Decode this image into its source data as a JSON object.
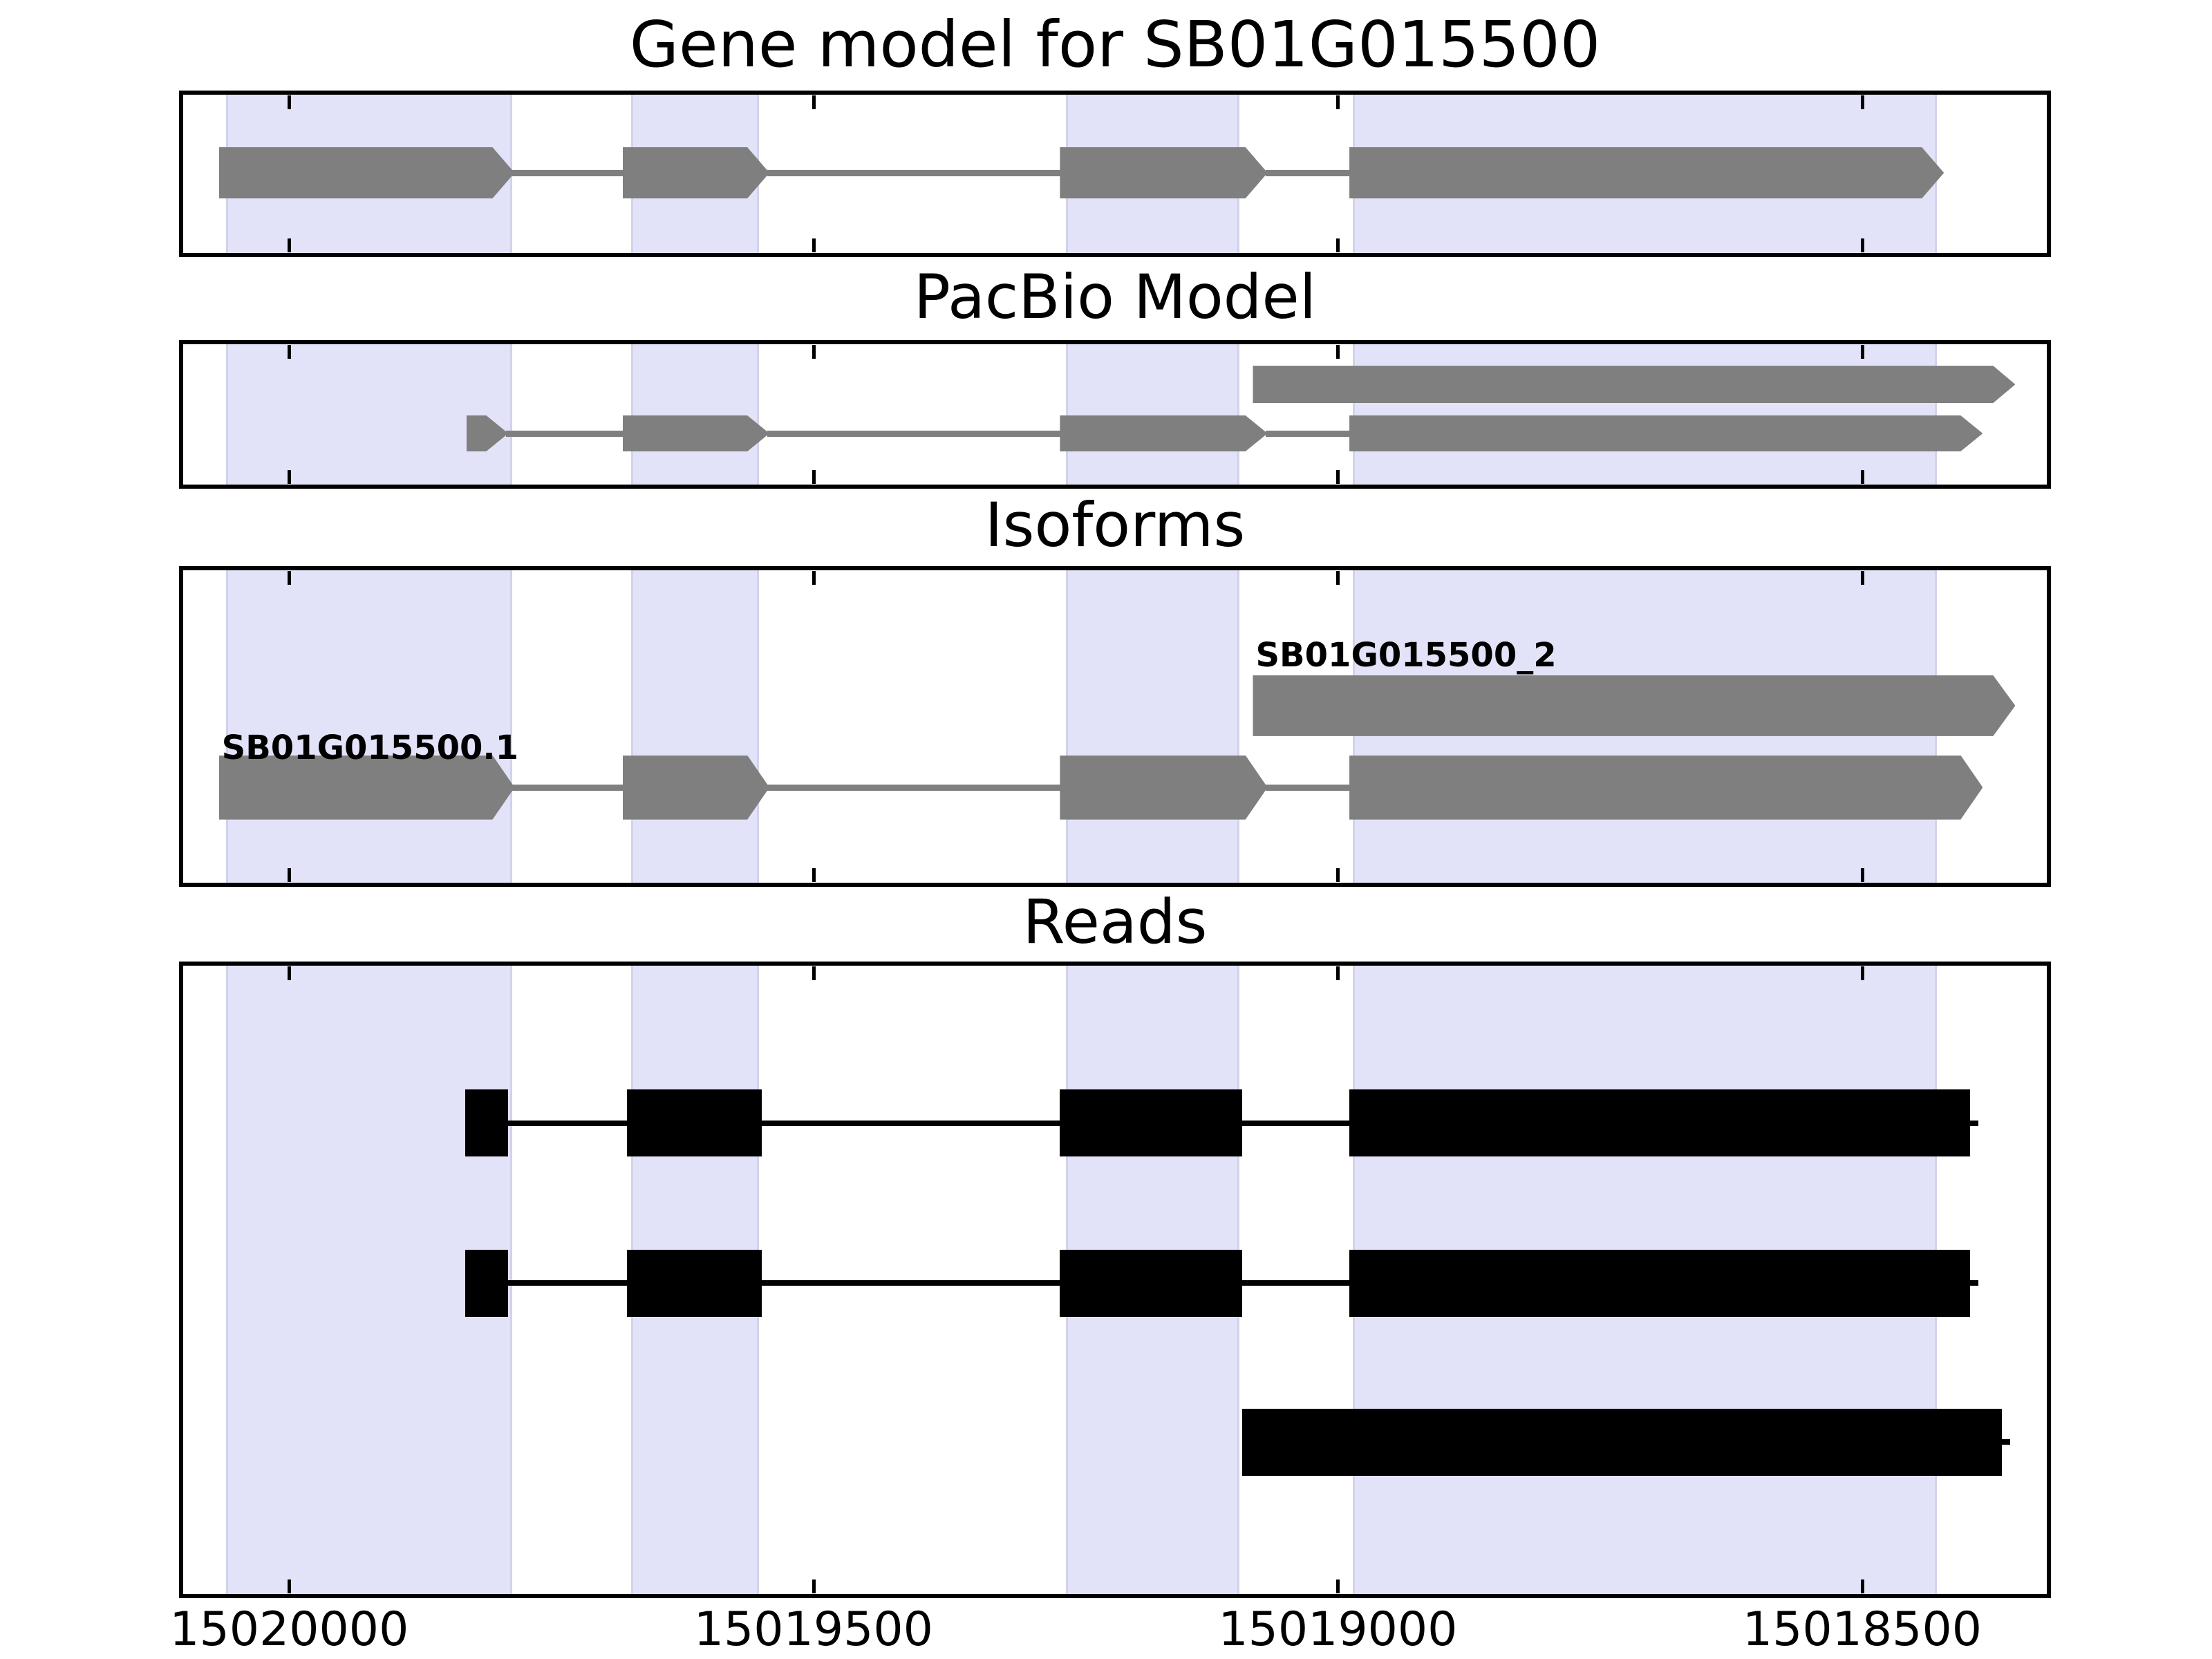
{
  "chart_data": {
    "type": "genomic-features",
    "title": "Gene model for SB01G015500",
    "gene_id": "SB01G015500",
    "x_axis": {
      "label": "",
      "unit": "bp",
      "inverted": true,
      "domain": [
        15020105,
        15018320
      ],
      "ticks": [
        15020000,
        15019500,
        15019000,
        15018500
      ],
      "tick_labels": [
        "15020000",
        "15019500",
        "15019000",
        "15018500"
      ]
    },
    "colors": {
      "model_exon": "#7f7f7f",
      "read": "#000000",
      "highlight_band": "#e2e2f8",
      "highlight_band_edge": "#d2d2ea",
      "frame": "#000000",
      "background": "#ffffff"
    },
    "highlight_regions": [
      {
        "start": 15020060,
        "end": 15019787
      },
      {
        "start": 15019674,
        "end": 15019552
      },
      {
        "start": 15019259,
        "end": 15019094
      },
      {
        "start": 15018986,
        "end": 15018429
      }
    ],
    "tracks": [
      {
        "title": "Gene model for SB01G015500",
        "style": "model",
        "features": [
          {
            "label": "",
            "exons": [
              {
                "start": 15020067,
                "end": 15019785
              },
              {
                "start": 15019682,
                "end": 15019542
              },
              {
                "start": 15019265,
                "end": 15019067
              },
              {
                "start": 15018989,
                "end": 15018422
              }
            ]
          }
        ]
      },
      {
        "title": "PacBio Model",
        "style": "model",
        "features": [
          {
            "label": "",
            "exons": [
              {
                "start": 15019081,
                "end": 15018354
              }
            ]
          },
          {
            "label": "",
            "exons": [
              {
                "start": 15019831,
                "end": 15019791
              },
              {
                "start": 15019682,
                "end": 15019542
              },
              {
                "start": 15019265,
                "end": 15019067
              },
              {
                "start": 15018989,
                "end": 15018385
              }
            ]
          }
        ]
      },
      {
        "title": "Isoforms",
        "style": "model",
        "features": [
          {
            "label": "SB01G015500_2",
            "exons": [
              {
                "start": 15019081,
                "end": 15018354
              }
            ]
          },
          {
            "label": "SB01G015500.1",
            "exons": [
              {
                "start": 15020067,
                "end": 15019785
              },
              {
                "start": 15019682,
                "end": 15019542
              },
              {
                "start": 15019265,
                "end": 15019067
              },
              {
                "start": 15018989,
                "end": 15018385
              }
            ]
          }
        ]
      },
      {
        "title": "Reads",
        "style": "read",
        "features": [
          {
            "label": "",
            "exons": [
              {
                "start": 15019832,
                "end": 15019791
              },
              {
                "start": 15019678,
                "end": 15019549
              },
              {
                "start": 15019265,
                "end": 15019091
              },
              {
                "start": 15018989,
                "end": 15018397
              }
            ]
          },
          {
            "label": "",
            "exons": [
              {
                "start": 15019832,
                "end": 15019791
              },
              {
                "start": 15019678,
                "end": 15019549
              },
              {
                "start": 15019265,
                "end": 15019091
              },
              {
                "start": 15018989,
                "end": 15018397
              }
            ]
          },
          {
            "label": "",
            "exons": [
              {
                "start": 15019091,
                "end": 15018367
              }
            ]
          }
        ]
      }
    ]
  }
}
